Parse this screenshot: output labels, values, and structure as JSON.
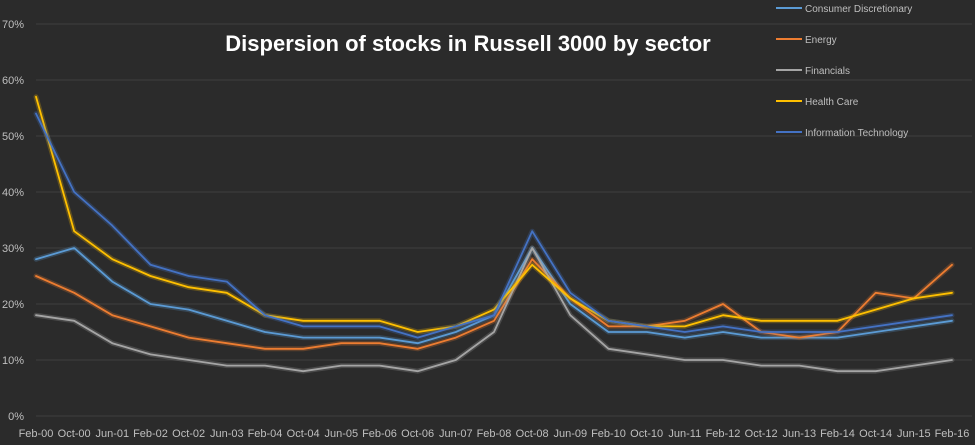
{
  "chart_data": {
    "type": "line",
    "title": "Dispersion of stocks in Russell 3000 by sector",
    "xlabel": "",
    "ylabel": "",
    "ylim": [
      0,
      70
    ],
    "y_ticks": [
      "0%",
      "10%",
      "20%",
      "30%",
      "40%",
      "50%",
      "60%",
      "70%"
    ],
    "x_tick_labels": [
      "Feb-00",
      "Oct-00",
      "Jun-01",
      "Feb-02",
      "Oct-02",
      "Jun-03",
      "Feb-04",
      "Oct-04",
      "Jun-05",
      "Feb-06",
      "Oct-06",
      "Jun-07",
      "Feb-08",
      "Oct-08",
      "Jun-09",
      "Feb-10",
      "Oct-10",
      "Jun-11",
      "Feb-12",
      "Oct-12",
      "Jun-13",
      "Feb-14",
      "Oct-14",
      "Jun-15",
      "Feb-16"
    ],
    "grid": true,
    "legend_position": "top-right",
    "series": [
      {
        "name": "Consumer Discretionary",
        "color": "#5b9bd5",
        "x": [
          "Feb-00",
          "Oct-00",
          "Jun-01",
          "Feb-02",
          "Oct-02",
          "Jun-03",
          "Feb-04",
          "Oct-04",
          "Jun-05",
          "Feb-06",
          "Oct-06",
          "Jun-07",
          "Feb-08",
          "Oct-08",
          "Jun-09",
          "Feb-10",
          "Oct-10",
          "Jun-11",
          "Feb-12",
          "Oct-12",
          "Jun-13",
          "Feb-14",
          "Oct-14",
          "Jun-15",
          "Feb-16"
        ],
        "values": [
          28,
          30,
          24,
          20,
          19,
          17,
          15,
          14,
          14,
          14,
          13,
          15,
          18,
          30,
          20,
          15,
          15,
          14,
          15,
          14,
          14,
          14,
          15,
          16,
          17
        ]
      },
      {
        "name": "Energy",
        "color": "#ed7d31",
        "x": [
          "Feb-00",
          "Oct-00",
          "Jun-01",
          "Feb-02",
          "Oct-02",
          "Jun-03",
          "Feb-04",
          "Oct-04",
          "Jun-05",
          "Feb-06",
          "Oct-06",
          "Jun-07",
          "Feb-08",
          "Oct-08",
          "Jun-09",
          "Feb-10",
          "Oct-10",
          "Jun-11",
          "Feb-12",
          "Oct-12",
          "Jun-13",
          "Feb-14",
          "Oct-14",
          "Jun-15",
          "Feb-16"
        ],
        "values": [
          25,
          22,
          18,
          16,
          14,
          13,
          12,
          12,
          13,
          13,
          12,
          14,
          17,
          28,
          21,
          16,
          16,
          17,
          20,
          15,
          14,
          15,
          22,
          21,
          27
        ]
      },
      {
        "name": "Financials",
        "color": "#a5a5a5",
        "x": [
          "Feb-00",
          "Oct-00",
          "Jun-01",
          "Feb-02",
          "Oct-02",
          "Jun-03",
          "Feb-04",
          "Oct-04",
          "Jun-05",
          "Feb-06",
          "Oct-06",
          "Jun-07",
          "Feb-08",
          "Oct-08",
          "Jun-09",
          "Feb-10",
          "Oct-10",
          "Jun-11",
          "Feb-12",
          "Oct-12",
          "Jun-13",
          "Feb-14",
          "Oct-14",
          "Jun-15",
          "Feb-16"
        ],
        "values": [
          18,
          17,
          13,
          11,
          10,
          9,
          9,
          8,
          9,
          9,
          8,
          10,
          15,
          30,
          18,
          12,
          11,
          10,
          10,
          9,
          9,
          8,
          8,
          9,
          10
        ]
      },
      {
        "name": "Health Care",
        "color": "#ffc000",
        "x": [
          "Feb-00",
          "Oct-00",
          "Jun-01",
          "Feb-02",
          "Oct-02",
          "Jun-03",
          "Feb-04",
          "Oct-04",
          "Jun-05",
          "Feb-06",
          "Oct-06",
          "Jun-07",
          "Feb-08",
          "Oct-08",
          "Jun-09",
          "Feb-10",
          "Oct-10",
          "Jun-11",
          "Feb-12",
          "Oct-12",
          "Jun-13",
          "Feb-14",
          "Oct-14",
          "Jun-15",
          "Feb-16"
        ],
        "values": [
          57,
          33,
          28,
          25,
          23,
          22,
          18,
          17,
          17,
          17,
          15,
          16,
          19,
          27,
          21,
          17,
          16,
          16,
          18,
          17,
          17,
          17,
          19,
          21,
          22
        ]
      },
      {
        "name": "Information Technology",
        "color": "#4472c4",
        "x": [
          "Feb-00",
          "Oct-00",
          "Jun-01",
          "Feb-02",
          "Oct-02",
          "Jun-03",
          "Feb-04",
          "Oct-04",
          "Jun-05",
          "Feb-06",
          "Oct-06",
          "Jun-07",
          "Feb-08",
          "Oct-08",
          "Jun-09",
          "Feb-10",
          "Oct-10",
          "Jun-11",
          "Feb-12",
          "Oct-12",
          "Jun-13",
          "Feb-14",
          "Oct-14",
          "Jun-15",
          "Feb-16"
        ],
        "values": [
          54,
          40,
          34,
          27,
          25,
          24,
          18,
          16,
          16,
          16,
          14,
          16,
          18,
          33,
          22,
          17,
          16,
          15,
          16,
          15,
          15,
          15,
          16,
          17,
          18
        ]
      }
    ]
  }
}
